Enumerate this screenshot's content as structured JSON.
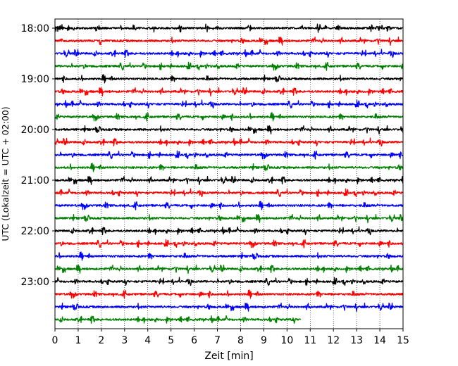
{
  "chart_data": {
    "type": "line",
    "title": "",
    "xlabel": "Zeit  [min]",
    "ylabel": "UTC (Lokalzeit = UTC + 02:00)",
    "xlim": [
      0,
      15
    ],
    "x_ticks": [
      "0",
      "1",
      "2",
      "3",
      "4",
      "5",
      "6",
      "7",
      "8",
      "9",
      "10",
      "11",
      "12",
      "13",
      "14",
      "15"
    ],
    "y_ticks": [
      "18:00",
      "19:00",
      "20:00",
      "21:00",
      "22:00",
      "23:00"
    ],
    "grid": "vertical dotted",
    "legend": "none",
    "trace_interval_min": 15,
    "colors": [
      "#000000",
      "#ff0000",
      "#0000ff",
      "#008000"
    ],
    "series": [
      {
        "start": "18:00",
        "end_min": 15,
        "color": "#000000"
      },
      {
        "start": "18:15",
        "end_min": 15,
        "color": "#ff0000"
      },
      {
        "start": "18:30",
        "end_min": 15,
        "color": "#0000ff"
      },
      {
        "start": "18:45",
        "end_min": 15,
        "color": "#008000"
      },
      {
        "start": "19:00",
        "end_min": 15,
        "color": "#000000"
      },
      {
        "start": "19:15",
        "end_min": 15,
        "color": "#ff0000"
      },
      {
        "start": "19:30",
        "end_min": 15,
        "color": "#0000ff"
      },
      {
        "start": "19:45",
        "end_min": 15,
        "color": "#008000"
      },
      {
        "start": "20:00",
        "end_min": 15,
        "color": "#000000"
      },
      {
        "start": "20:15",
        "end_min": 15,
        "color": "#ff0000"
      },
      {
        "start": "20:30",
        "end_min": 15,
        "color": "#0000ff"
      },
      {
        "start": "20:45",
        "end_min": 15,
        "color": "#008000"
      },
      {
        "start": "21:00",
        "end_min": 15,
        "color": "#000000"
      },
      {
        "start": "21:15",
        "end_min": 15,
        "color": "#ff0000"
      },
      {
        "start": "21:30",
        "end_min": 15,
        "color": "#0000ff"
      },
      {
        "start": "21:45",
        "end_min": 15,
        "color": "#008000"
      },
      {
        "start": "22:00",
        "end_min": 15,
        "color": "#000000"
      },
      {
        "start": "22:15",
        "end_min": 15,
        "color": "#ff0000"
      },
      {
        "start": "22:30",
        "end_min": 15,
        "color": "#0000ff"
      },
      {
        "start": "22:45",
        "end_min": 15,
        "color": "#008000"
      },
      {
        "start": "23:00",
        "end_min": 15,
        "color": "#000000"
      },
      {
        "start": "23:15",
        "end_min": 15,
        "color": "#ff0000"
      },
      {
        "start": "23:30",
        "end_min": 15,
        "color": "#0000ff"
      },
      {
        "start": "23:45",
        "end_min": 10.6,
        "color": "#008000"
      }
    ]
  }
}
